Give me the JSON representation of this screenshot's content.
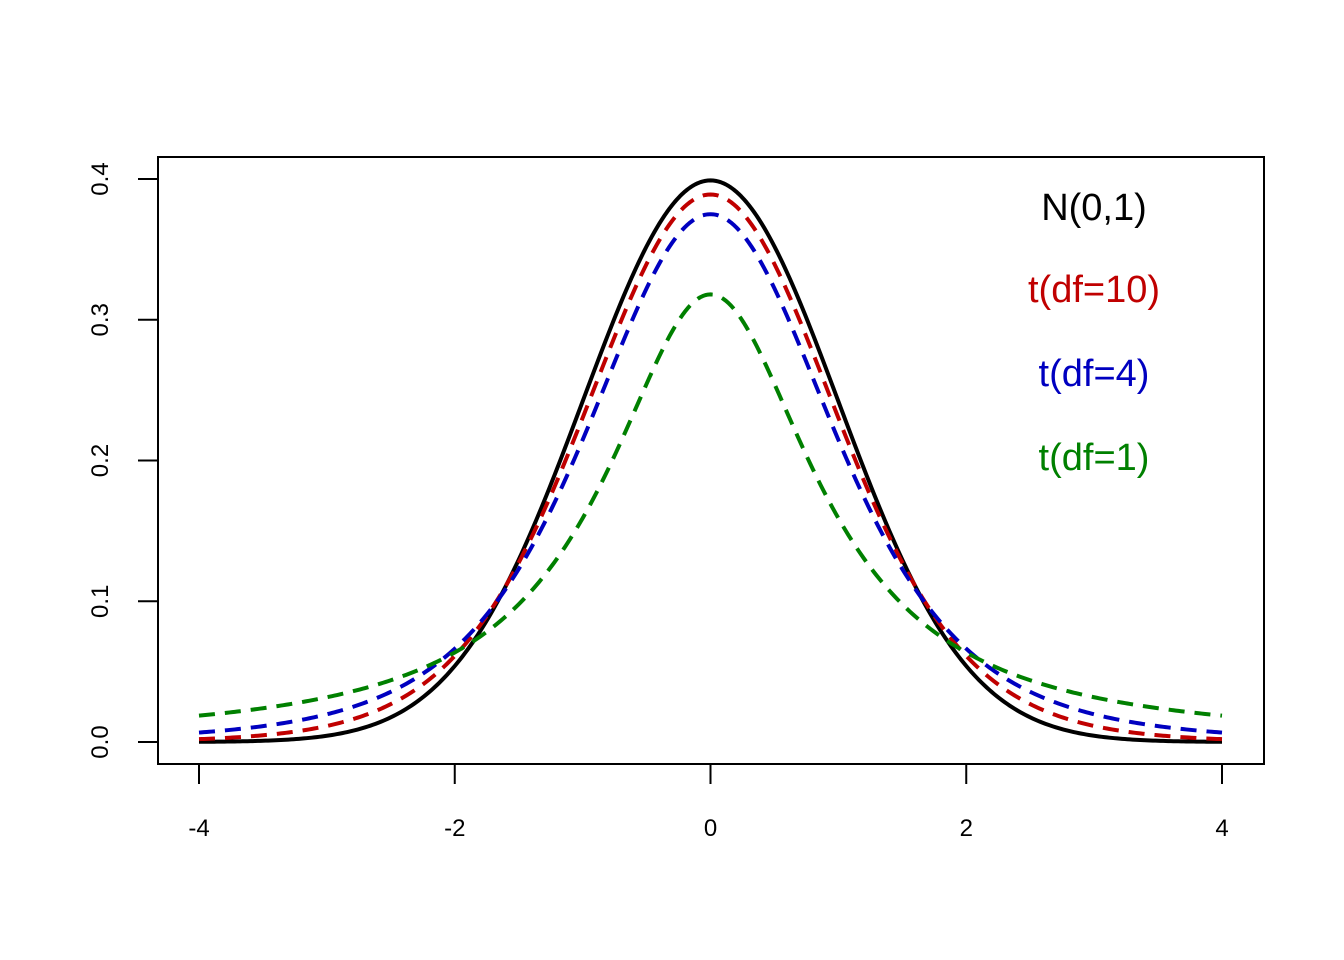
{
  "chart_data": {
    "type": "line",
    "title": "",
    "xlabel": "",
    "ylabel": "",
    "xlim": [
      -4,
      4
    ],
    "ylim": [
      0,
      0.4
    ],
    "x_ticks": [
      "-4",
      "-2",
      "0",
      "2",
      "4"
    ],
    "y_ticks": [
      "0.0",
      "0.1",
      "0.2",
      "0.3",
      "0.4"
    ],
    "grid": false,
    "legend_position": "top-right",
    "series": [
      {
        "name": "N(0,1)",
        "color": "#000000",
        "dash": "solid",
        "peak": 0.399,
        "x": [
          -4,
          -3,
          -2.5,
          -2,
          -1.5,
          -1,
          -0.5,
          0,
          0.5,
          1,
          1.5,
          2,
          2.5,
          3,
          4
        ],
        "y": [
          0.0001,
          0.0044,
          0.0175,
          0.054,
          0.1295,
          0.242,
          0.3521,
          0.3989,
          0.3521,
          0.242,
          0.1295,
          0.054,
          0.0175,
          0.0044,
          0.0001
        ]
      },
      {
        "name": "t(df=10)",
        "color": "#c00000",
        "dash": "dashed",
        "peak": 0.389,
        "x": [
          -4,
          -3,
          -2,
          -1,
          0,
          1,
          2,
          3,
          4
        ],
        "y": [
          0.002,
          0.011,
          0.061,
          0.23,
          0.389,
          0.23,
          0.061,
          0.011,
          0.002
        ]
      },
      {
        "name": "t(df=4)",
        "color": "#0000c0",
        "dash": "dashed",
        "peak": 0.375,
        "x": [
          -4,
          -3,
          -2,
          -1,
          0,
          1,
          2,
          3,
          4
        ],
        "y": [
          0.0066,
          0.0197,
          0.0663,
          0.2147,
          0.375,
          0.2147,
          0.0663,
          0.0197,
          0.0066
        ]
      },
      {
        "name": "t(df=1)",
        "color": "#008000",
        "dash": "dashed",
        "peak": 0.318,
        "x": [
          -4,
          -3,
          -2,
          -1,
          0,
          1,
          2,
          3,
          4
        ],
        "y": [
          0.0187,
          0.0318,
          0.0637,
          0.1592,
          0.3183,
          0.1592,
          0.0637,
          0.0318,
          0.0187
        ]
      }
    ]
  }
}
